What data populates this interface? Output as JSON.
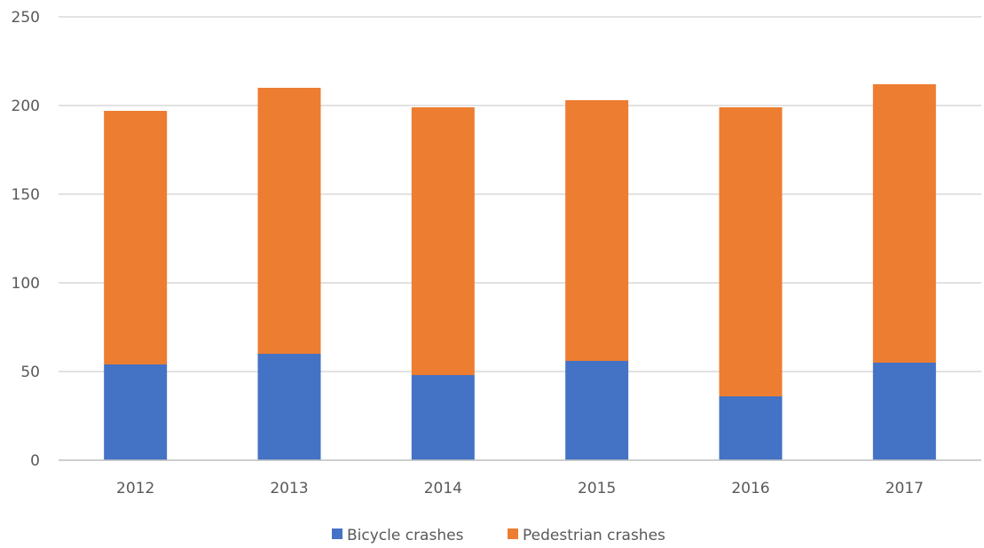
{
  "chart_data": {
    "type": "bar",
    "stacked": true,
    "categories": [
      "2012",
      "2013",
      "2014",
      "2015",
      "2016",
      "2017"
    ],
    "series": [
      {
        "name": "Bicycle crashes",
        "color": "#4472c4",
        "values": [
          54,
          60,
          48,
          56,
          36,
          55
        ]
      },
      {
        "name": "Pedestrian crashes",
        "color": "#ed7d31",
        "values": [
          143,
          150,
          151,
          147,
          163,
          157
        ]
      }
    ],
    "ylim": [
      0,
      250
    ],
    "yticks": [
      "0",
      "50",
      "100",
      "150",
      "200",
      "250"
    ],
    "grid": true,
    "legend": "bottom-center"
  }
}
